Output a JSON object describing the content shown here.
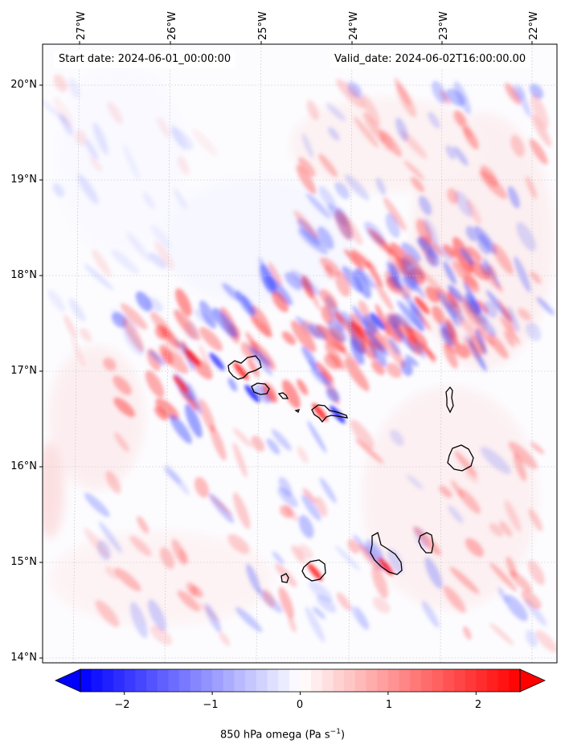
{
  "map": {
    "start_label": "Start date: 2024-06-01_00:00:00",
    "valid_label": "Valid_date: 2024-06-02T16:00:00.00",
    "lon_labels": [
      "27°W",
      "26°W",
      "25°W",
      "24°W",
      "23°W",
      "22°W"
    ],
    "lat_labels": [
      "20°N",
      "19°N",
      "18°N",
      "17°N",
      "16°N",
      "15°N",
      "14°N"
    ],
    "lon_range": [
      -27.4,
      -21.8
    ],
    "lat_range": [
      13.95,
      20.45
    ],
    "gridlines": true
  },
  "colorbar": {
    "title_prefix": "850 hPa omega (Pa s",
    "title_exp": "−1",
    "title_suffix": ")",
    "tick_labels": [
      "−2",
      "−1",
      "0",
      "1",
      "2"
    ],
    "tick_values": [
      -2,
      -1,
      0,
      1,
      2
    ],
    "range": [
      -2.5,
      2.5
    ],
    "colormap": "bwr",
    "extend": "both"
  },
  "colors": {
    "negative": "#0000ff",
    "zero": "#ffffff",
    "positive": "#ff0000",
    "coast": "#000000"
  },
  "islands": [
    "Santo Antão",
    "São Vicente",
    "Santa Luzia",
    "São Nicolau",
    "Sal",
    "Boa Vista",
    "Maio",
    "Santiago",
    "Fogo",
    "Brava"
  ]
}
